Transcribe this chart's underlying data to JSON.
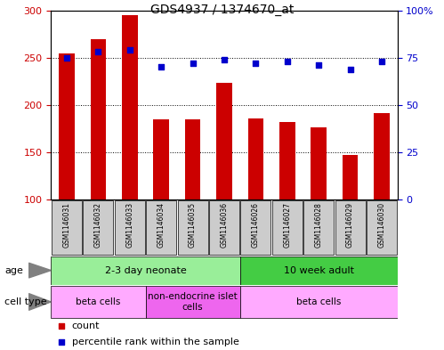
{
  "title": "GDS4937 / 1374670_at",
  "samples": [
    "GSM1146031",
    "GSM1146032",
    "GSM1146033",
    "GSM1146034",
    "GSM1146035",
    "GSM1146036",
    "GSM1146026",
    "GSM1146027",
    "GSM1146028",
    "GSM1146029",
    "GSM1146030"
  ],
  "counts": [
    255,
    270,
    295,
    185,
    185,
    223,
    186,
    182,
    176,
    147,
    191
  ],
  "percentiles": [
    75,
    78,
    79,
    70,
    72,
    74,
    72,
    73,
    71,
    69,
    73
  ],
  "ylim_left": [
    100,
    300
  ],
  "ylim_right": [
    0,
    100
  ],
  "yticks_left": [
    100,
    150,
    200,
    250,
    300
  ],
  "yticks_right": [
    0,
    25,
    50,
    75,
    100
  ],
  "bar_color": "#cc0000",
  "dot_color": "#0000cc",
  "age_groups": [
    {
      "label": "2-3 day neonate",
      "start": 0,
      "end": 6,
      "color": "#99ee99"
    },
    {
      "label": "10 week adult",
      "start": 6,
      "end": 11,
      "color": "#44cc44"
    }
  ],
  "cell_type_groups": [
    {
      "label": "beta cells",
      "start": 0,
      "end": 3,
      "color": "#ffaaff"
    },
    {
      "label": "non-endocrine islet\ncells",
      "start": 3,
      "end": 6,
      "color": "#ee66ee"
    },
    {
      "label": "beta cells",
      "start": 6,
      "end": 11,
      "color": "#ffaaff"
    }
  ],
  "bg_color": "#ffffff",
  "label_bg_color": "#cccccc",
  "n_samples": 11
}
